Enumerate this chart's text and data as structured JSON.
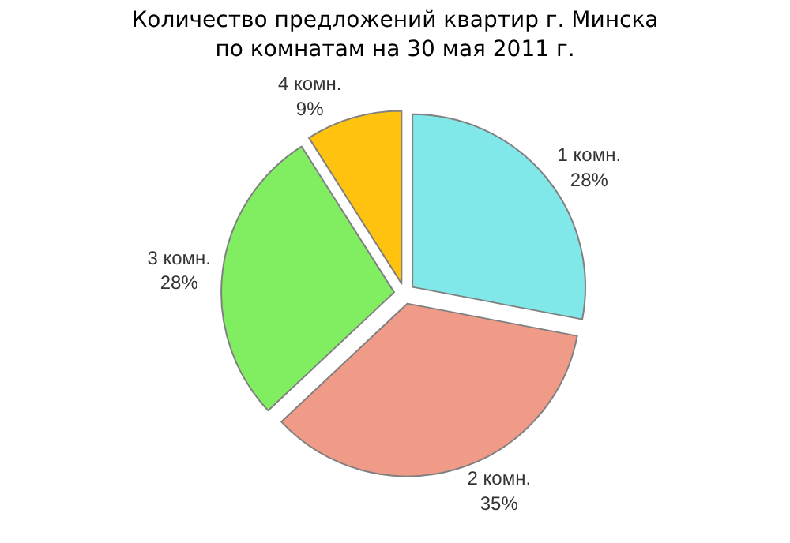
{
  "chart_data": {
    "type": "pie",
    "title": "Количество предложений квартир г. Минска\nпо комнатам на 30 мая 2011 г.",
    "categories": [
      "1 комн.",
      "2 комн.",
      "3 комн.",
      "4 комн."
    ],
    "values": [
      28,
      35,
      28,
      9
    ],
    "value_labels": [
      "28%",
      "35%",
      "28%",
      "9%"
    ],
    "colors": [
      "#80e8e8",
      "#f09a88",
      "#80ee60",
      "#ffc20e"
    ],
    "legend": false
  }
}
